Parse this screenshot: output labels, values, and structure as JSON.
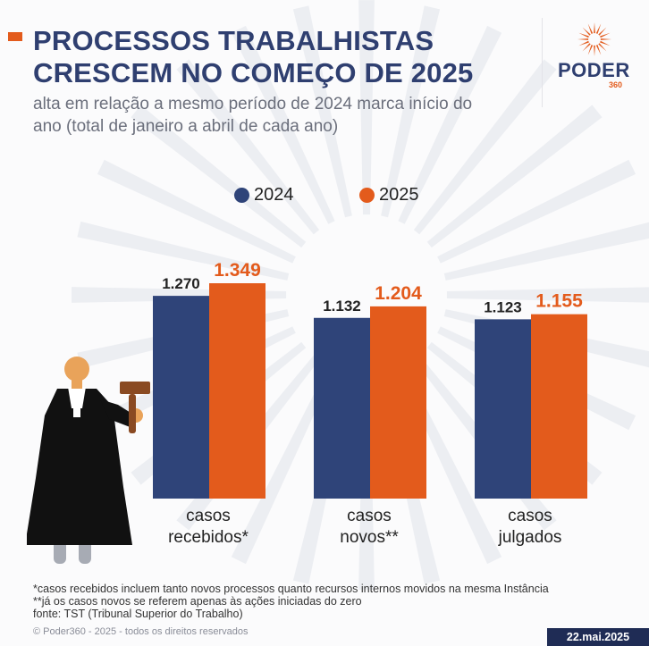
{
  "header": {
    "title_line1": "PROCESSOS TRABALHISTAS",
    "title_line2": "CRESCEM NO COMEÇO DE 2025",
    "subtitle_line1": "alta em relação a mesmo período de 2024 marca início do",
    "subtitle_line2": "ano (total de janeiro a abril de cada ano)"
  },
  "logo": {
    "brand": "PODER",
    "sub": "360"
  },
  "colors": {
    "series_2024": "#2f4479",
    "series_2025": "#e35b1c",
    "title": "#2f3f70"
  },
  "chart_data": {
    "type": "bar",
    "categories": [
      "casos recebidos*",
      "casos novos**",
      "casos julgados"
    ],
    "category_lines": [
      [
        "casos",
        "recebidos*"
      ],
      [
        "casos",
        "novos**"
      ],
      [
        "casos",
        "julgados"
      ]
    ],
    "series": [
      {
        "name": "2024",
        "values": [
          1270,
          1132,
          1123
        ],
        "labels": [
          "1.270",
          "1.132",
          "1.123"
        ]
      },
      {
        "name": "2025",
        "values": [
          1349,
          1204,
          1155
        ],
        "labels": [
          "1.349",
          "1.204",
          "1.155"
        ]
      }
    ],
    "title": "",
    "xlabel": "",
    "ylabel": "",
    "legend": "top-center",
    "grid": false
  },
  "illustration": "judge-with-gavel",
  "footer": {
    "note1": "*casos recebidos incluem tanto novos processos quanto recursos internos movidos na mesma Instância",
    "note2": "**já os casos novos se referem apenas às ações iniciadas do zero",
    "source": "fonte: TST (Tribunal Superior do Trabalho)",
    "copyright": "© Poder360 - 2025 - todos os direitos reservados",
    "date": "22.mai.2025"
  }
}
